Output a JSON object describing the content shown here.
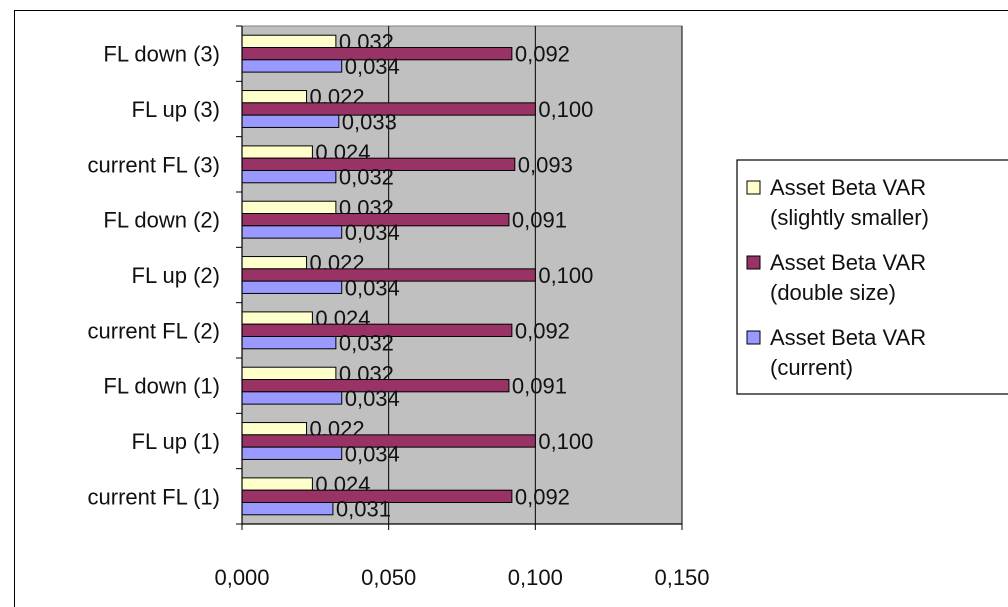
{
  "chart_data": {
    "type": "bar",
    "orientation": "horizontal",
    "categories": [
      "current FL (1)",
      "FL up (1)",
      "FL down (1)",
      "current FL (2)",
      "FL up (2)",
      "FL down (2)",
      "current FL (3)",
      "FL up (3)",
      "FL down (3)"
    ],
    "series": [
      {
        "name": "Asset Beta VAR (slightly smaller)",
        "legend_lines": [
          "Asset Beta VAR",
          "(slightly smaller)"
        ],
        "color": "#ffffcc",
        "values": [
          0.024,
          0.022,
          0.032,
          0.024,
          0.022,
          0.032,
          0.024,
          0.022,
          0.032
        ],
        "labels": [
          "0,024",
          "0,022",
          "0,032",
          "0,024",
          "0,022",
          "0,032",
          "0,024",
          "0,022",
          "0,032"
        ]
      },
      {
        "name": "Asset Beta VAR (double size)",
        "legend_lines": [
          "Asset Beta VAR",
          "(double size)"
        ],
        "color": "#993366",
        "values": [
          0.092,
          0.1,
          0.091,
          0.092,
          0.1,
          0.091,
          0.093,
          0.1,
          0.092
        ],
        "labels": [
          "0,092",
          "0,100",
          "0,091",
          "0,092",
          "0,100",
          "0,091",
          "0,093",
          "0,100",
          "0,092"
        ]
      },
      {
        "name": "Asset Beta VAR (current)",
        "legend_lines": [
          "Asset Beta VAR",
          "(current)"
        ],
        "color": "#9999ff",
        "values": [
          0.031,
          0.034,
          0.034,
          0.032,
          0.034,
          0.034,
          0.032,
          0.033,
          0.034
        ],
        "labels": [
          "0,031",
          "0,034",
          "0,034",
          "0,032",
          "0,034",
          "0,034",
          "0,032",
          "0,033",
          "0,034"
        ]
      }
    ],
    "xlim": [
      0,
      0.15
    ],
    "x_ticks": [
      0,
      0.05,
      0.1,
      0.15
    ],
    "x_tick_labels": [
      "0,000",
      "0,050",
      "0,100",
      "0,150"
    ],
    "grid": "vertical major gridlines",
    "plot_background": "#c0c0c0",
    "legend_position": "right",
    "title": "",
    "xlabel": "",
    "ylabel": ""
  }
}
